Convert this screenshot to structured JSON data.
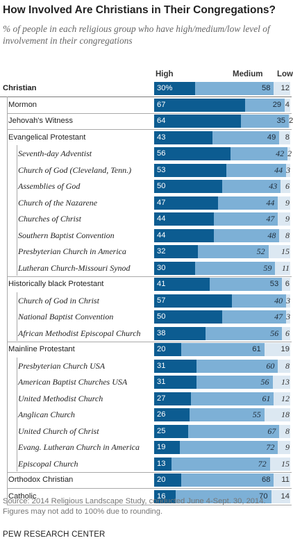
{
  "title": "How Involved Are Christians in Their Congregations?",
  "subtitle": "% of people in each religious group who have high/medium/low level of involvement in their congregations",
  "headers": {
    "high": "High",
    "medium": "Medium",
    "low": "Low"
  },
  "footnote1": "Source: 2014 Religious Landscape Study, conducted June 4-Sept. 30, 2014.",
  "footnote2": "Figures may not add to 100% due to rounding.",
  "brand": "PEW RESEARCH CENTER",
  "colors": {
    "high": "#0c5c91",
    "medium": "#7db0d6",
    "low": "#dce8f2"
  },
  "chart_data": {
    "type": "bar",
    "orientation": "horizontal",
    "stacked": true,
    "categories": [
      "Christian",
      "Mormon",
      "Jehovah's Witness",
      "Evangelical Protestant",
      "Seventh-day Adventist",
      "Church of God (Cleveland, Tenn.)",
      "Assemblies of God",
      "Church of the Nazarene",
      "Churches of Christ",
      "Southern Baptist Convention",
      "Presbyterian Church in America",
      "Lutheran Church-Missouri Synod",
      "Historically black Protestant",
      "Church of God in Christ",
      "National Baptist Convention",
      "African Methodist Episcopal Church",
      "Mainline Protestant",
      "Presbyterian Church USA",
      "American Baptist Churches USA",
      "United Methodist Church",
      "Anglican Church",
      "United Church of Christ",
      "Evang. Lutheran Church in America",
      "Episcopal Church",
      "Orthodox Christian",
      "Catholic"
    ],
    "levels": [
      0,
      1,
      1,
      1,
      2,
      2,
      2,
      2,
      2,
      2,
      2,
      2,
      1,
      2,
      2,
      2,
      1,
      2,
      2,
      2,
      2,
      2,
      2,
      2,
      1,
      1
    ],
    "series": [
      {
        "name": "High",
        "values": [
          30,
          67,
          64,
          43,
          56,
          53,
          50,
          47,
          44,
          44,
          32,
          30,
          41,
          57,
          50,
          38,
          20,
          31,
          31,
          27,
          26,
          25,
          19,
          13,
          20,
          16
        ]
      },
      {
        "name": "Medium",
        "values": [
          58,
          29,
          35,
          49,
          42,
          44,
          43,
          44,
          47,
          48,
          52,
          59,
          53,
          40,
          47,
          56,
          61,
          60,
          56,
          61,
          55,
          67,
          72,
          72,
          68,
          70
        ]
      },
      {
        "name": "Low",
        "values": [
          12,
          4,
          2,
          8,
          2,
          3,
          6,
          9,
          9,
          8,
          15,
          11,
          6,
          3,
          3,
          6,
          19,
          8,
          13,
          12,
          18,
          8,
          9,
          15,
          11,
          14
        ]
      }
    ],
    "value_suffix_first": "%",
    "xlim": [
      0,
      100
    ],
    "legend": "top"
  }
}
